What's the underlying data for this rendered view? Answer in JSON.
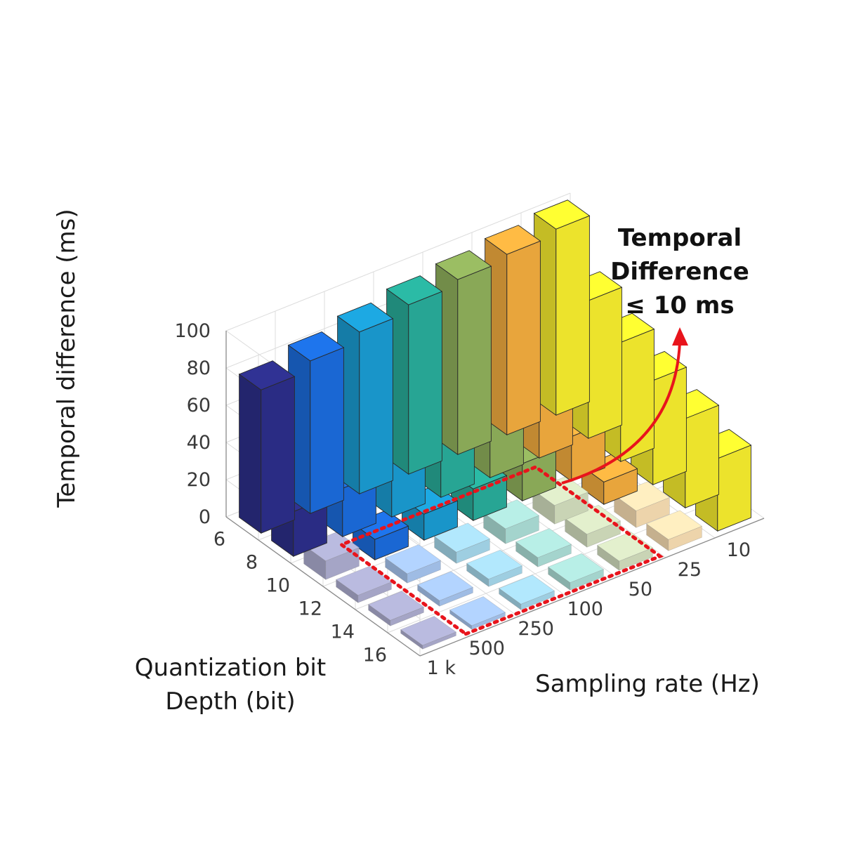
{
  "chart_data": {
    "type": "bar3d",
    "x_label": "Sampling rate (Hz)",
    "y_label_lines": [
      "Quantization bit",
      "Depth (bit)"
    ],
    "z_label": "Temporal difference (ms)",
    "x_categories": [
      "1 k",
      "500",
      "250",
      "100",
      "50",
      "25",
      "10"
    ],
    "y_categories": [
      "6",
      "8",
      "10",
      "12",
      "14",
      "16"
    ],
    "z_ticks": [
      "0",
      "20",
      "40",
      "60",
      "80",
      "100"
    ],
    "z_range": [
      0,
      100
    ],
    "series_colors": [
      "#2d2f8c",
      "#1c6ee0",
      "#1b9fd6",
      "#29b09d",
      "#92b35d",
      "#f7b040",
      "#fbf12f"
    ],
    "values": [
      [
        77,
        24,
        10,
        4,
        3,
        2
      ],
      [
        82,
        26,
        11,
        5,
        3,
        2
      ],
      [
        87,
        32,
        14,
        6,
        4,
        3
      ],
      [
        91,
        36,
        17,
        8,
        5,
        4
      ],
      [
        94,
        41,
        20,
        10,
        7,
        5
      ],
      [
        97,
        44,
        24,
        12,
        9,
        6
      ],
      [
        100,
        74,
        64,
        56,
        48,
        39
      ]
    ],
    "highlight_note": "cells with temporal difference ≤ 10 ms are shown faded inside the dotted outline",
    "annotation": {
      "lines": [
        "Temporal",
        "Difference",
        "≤ 10 ms"
      ],
      "color": "#e8141c"
    }
  }
}
